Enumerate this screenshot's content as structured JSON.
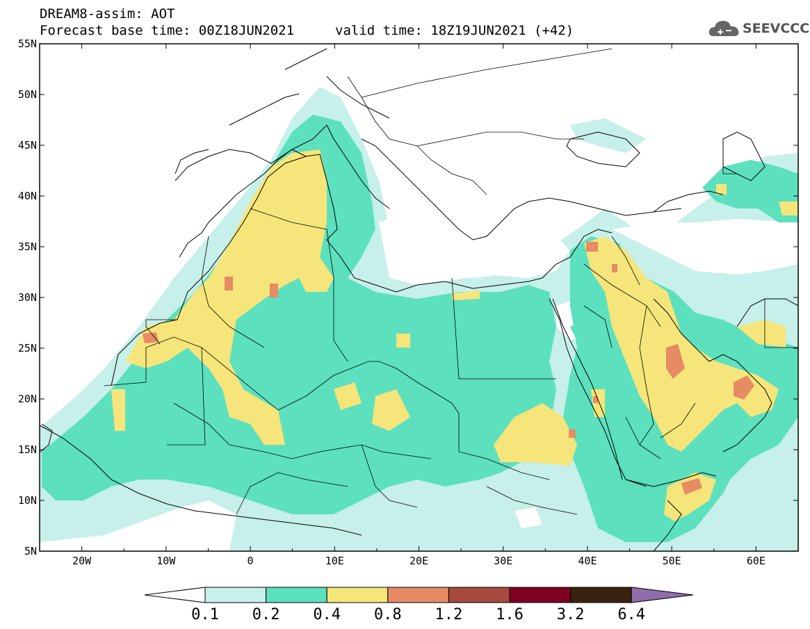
{
  "header": {
    "title": "DREAM8-assim: AOT",
    "base_time": "Forecast base time: 00Z18JUN2021",
    "valid_time": "valid time: 18Z19JUN2021 (+42)",
    "logo_text": "SEEVCCC",
    "logo_icon": "cloud-icon"
  },
  "map": {
    "lat_labels": [
      "55N",
      "50N",
      "45N",
      "40N",
      "35N",
      "30N",
      "25N",
      "20N",
      "15N",
      "10N",
      "5N"
    ],
    "lon_labels": [
      "20W",
      "10W",
      "0",
      "10E",
      "20E",
      "30E",
      "40E",
      "50E",
      "60E"
    ],
    "lon_range": [
      -25,
      65
    ],
    "lat_range": [
      5,
      55
    ],
    "field": "AOT"
  },
  "colorbar": {
    "labels": [
      "0.1",
      "0.2",
      "0.4",
      "0.8",
      "1.2",
      "1.6",
      "3.2",
      "6.4"
    ],
    "colors": [
      "#ffffff",
      "#c6f0e9",
      "#5ce0bd",
      "#f6e57a",
      "#e68b63",
      "#a54a3c",
      "#7e0022",
      "#3a2210",
      "#8f6dad"
    ]
  }
}
